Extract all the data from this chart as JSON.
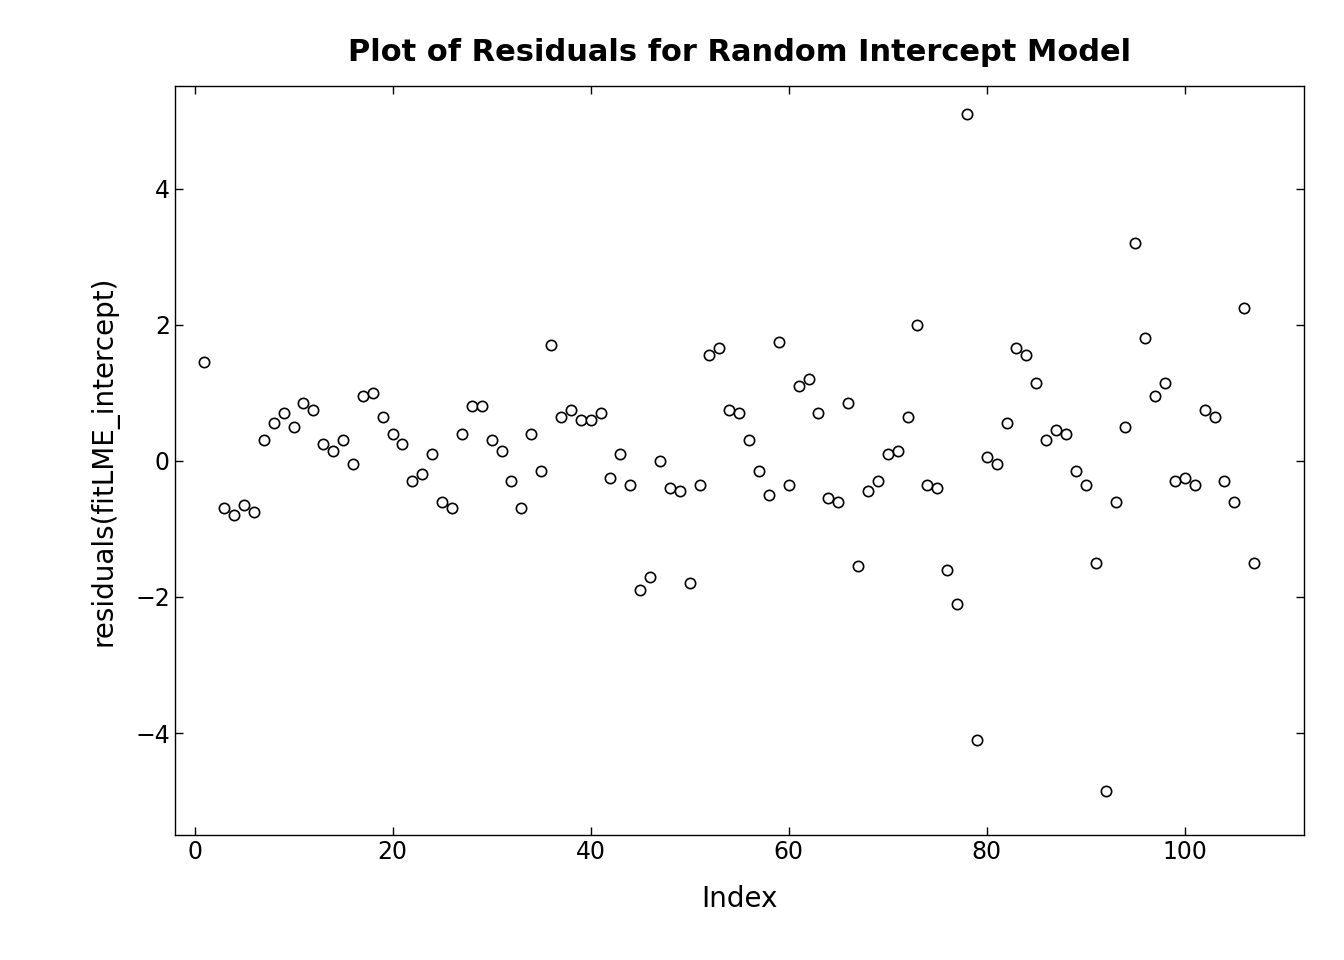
{
  "title": "Plot of Residuals for Random Intercept Model",
  "xlabel": "Index",
  "ylabel": "residuals(fitLME_intercept)",
  "xlim": [
    -2,
    112
  ],
  "ylim": [
    -5.5,
    5.5
  ],
  "yticks": [
    -4,
    -2,
    0,
    2,
    4
  ],
  "xticks": [
    0,
    20,
    40,
    60,
    80,
    100
  ],
  "background_color": "#ffffff",
  "point_color": "black",
  "point_facecolor": "white",
  "point_size": 55,
  "point_linewidth": 1.2,
  "title_fontsize": 22,
  "axis_label_fontsize": 20,
  "tick_fontsize": 17,
  "x": [
    1,
    3,
    4,
    5,
    6,
    7,
    8,
    9,
    10,
    11,
    12,
    13,
    14,
    15,
    16,
    17,
    18,
    19,
    20,
    21,
    22,
    23,
    24,
    25,
    26,
    27,
    28,
    29,
    30,
    31,
    32,
    33,
    34,
    35,
    36,
    37,
    38,
    39,
    40,
    41,
    42,
    43,
    44,
    45,
    46,
    47,
    48,
    49,
    50,
    51,
    52,
    53,
    54,
    55,
    56,
    57,
    58,
    59,
    60,
    61,
    62,
    63,
    64,
    65,
    66,
    67,
    68,
    69,
    70,
    71,
    72,
    73,
    74,
    75,
    76,
    77,
    78,
    79,
    80,
    81,
    82,
    83,
    84,
    85,
    86,
    87,
    88,
    89,
    90,
    91,
    92,
    93,
    94,
    95,
    96,
    97,
    98,
    99,
    100,
    101,
    102,
    103,
    104,
    105,
    106,
    107
  ],
  "y": [
    1.45,
    -0.7,
    -0.8,
    -0.65,
    -0.75,
    0.3,
    0.55,
    0.7,
    0.5,
    0.85,
    0.75,
    0.25,
    0.15,
    0.3,
    -0.05,
    0.95,
    1.0,
    0.65,
    0.4,
    0.25,
    -0.3,
    -0.2,
    0.1,
    -0.6,
    -0.7,
    0.4,
    0.8,
    0.8,
    0.3,
    0.15,
    -0.3,
    -0.7,
    0.4,
    -0.15,
    1.7,
    0.65,
    0.75,
    0.6,
    0.6,
    0.7,
    -0.25,
    0.1,
    -0.35,
    -1.9,
    -1.7,
    0.0,
    -0.4,
    -0.45,
    -1.8,
    -0.35,
    1.55,
    1.65,
    0.75,
    0.7,
    0.3,
    -0.15,
    -0.5,
    1.75,
    -0.35,
    1.1,
    1.2,
    0.7,
    -0.55,
    -0.6,
    0.85,
    -1.55,
    -0.45,
    -0.3,
    0.1,
    0.15,
    0.65,
    2.0,
    -0.35,
    -0.4,
    -1.6,
    -2.1,
    5.1,
    -4.1,
    0.05,
    -0.05,
    0.55,
    1.65,
    1.55,
    1.15,
    0.3,
    0.45,
    0.4,
    -0.15,
    -0.35,
    -1.5,
    -4.85,
    -0.6,
    0.5,
    3.2,
    1.8,
    0.95,
    1.15,
    -0.3,
    -0.25,
    -0.35,
    0.75,
    0.65,
    -0.3,
    -0.6,
    2.25,
    -1.5
  ]
}
